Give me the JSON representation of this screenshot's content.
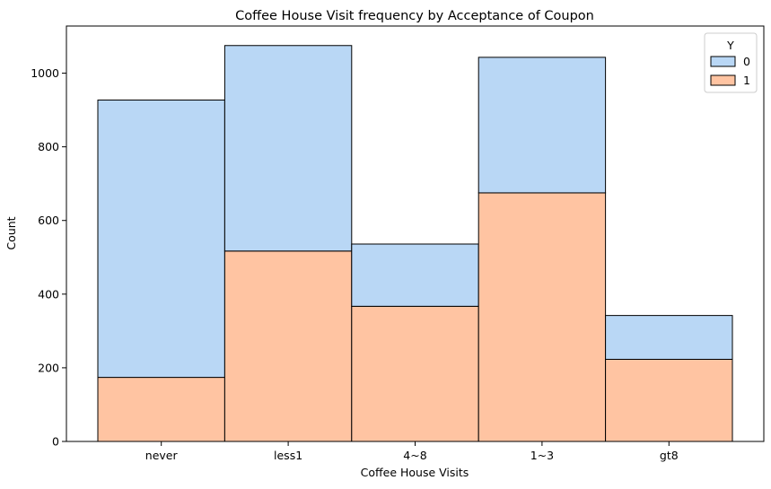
{
  "chart_data": {
    "type": "bar",
    "stacked": true,
    "title": "Coffee House Visit frequency by Acceptance of Coupon",
    "xlabel": "Coffee House Visits",
    "ylabel": "Count",
    "categories": [
      "never",
      "less1",
      "4~8",
      "1~3",
      "gt8"
    ],
    "series": [
      {
        "name": "0",
        "color": "#b9d7f5",
        "values": [
          753,
          558,
          169,
          368,
          119
        ]
      },
      {
        "name": "1",
        "color": "#ffc4a2",
        "values": [
          174,
          517,
          367,
          675,
          223
        ]
      }
    ],
    "ylim": [
      0,
      1128
    ],
    "yticks": [
      0,
      200,
      400,
      600,
      800,
      1000
    ],
    "legend": {
      "title": "Y",
      "position": "top-right"
    },
    "grid": false
  }
}
